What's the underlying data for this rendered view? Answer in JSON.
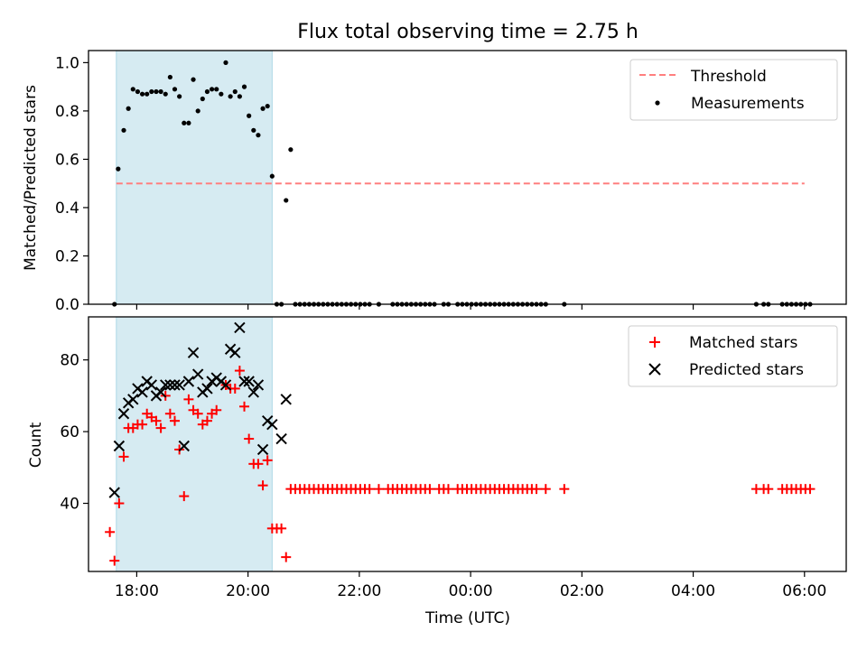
{
  "chart_data": [
    {
      "type": "scatter",
      "title": "Flux total observing time = 2.75 h",
      "xlabel": "",
      "ylabel": "Matched/Predicted stars",
      "ylim": [
        0,
        1.05
      ],
      "xlim": [
        "17:08",
        "06:45"
      ],
      "y_ticks": [
        "0.0",
        "0.2",
        "0.4",
        "0.6",
        "0.8",
        "1.0"
      ],
      "legend_position": "upper right",
      "highlight_span": [
        "17:38",
        "20:26"
      ],
      "threshold": {
        "name": "Threshold",
        "value": 0.5,
        "x_start": "17:38",
        "x_end": "06:00",
        "color": "#ff7f7f"
      },
      "series": [
        {
          "name": "Measurements",
          "color": "#000000",
          "points": [
            [
              "17:36",
              0.0
            ],
            [
              "17:40",
              0.56
            ],
            [
              "17:46",
              0.72
            ],
            [
              "17:51",
              0.81
            ],
            [
              "17:56",
              0.89
            ],
            [
              "18:01",
              0.88
            ],
            [
              "18:06",
              0.87
            ],
            [
              "18:11",
              0.87
            ],
            [
              "18:16",
              0.88
            ],
            [
              "18:21",
              0.88
            ],
            [
              "18:26",
              0.88
            ],
            [
              "18:31",
              0.87
            ],
            [
              "18:36",
              0.94
            ],
            [
              "18:41",
              0.89
            ],
            [
              "18:46",
              0.86
            ],
            [
              "18:51",
              0.75
            ],
            [
              "18:56",
              0.75
            ],
            [
              "19:01",
              0.93
            ],
            [
              "19:06",
              0.8
            ],
            [
              "19:11",
              0.85
            ],
            [
              "19:16",
              0.88
            ],
            [
              "19:21",
              0.89
            ],
            [
              "19:26",
              0.89
            ],
            [
              "19:31",
              0.87
            ],
            [
              "19:36",
              1.0
            ],
            [
              "19:41",
              0.86
            ],
            [
              "19:46",
              0.88
            ],
            [
              "19:51",
              0.86
            ],
            [
              "19:56",
              0.9
            ],
            [
              "20:01",
              0.78
            ],
            [
              "20:06",
              0.72
            ],
            [
              "20:11",
              0.7
            ],
            [
              "20:16",
              0.81
            ],
            [
              "20:21",
              0.82
            ],
            [
              "20:26",
              0.53
            ],
            [
              "20:31",
              0.0
            ],
            [
              "20:36",
              0.0
            ],
            [
              "20:41",
              0.43
            ],
            [
              "20:46",
              0.64
            ],
            [
              "20:51",
              0.0
            ],
            [
              "20:56",
              0.0
            ],
            [
              "21:01",
              0.0
            ],
            [
              "21:06",
              0.0
            ],
            [
              "21:11",
              0.0
            ],
            [
              "21:16",
              0.0
            ],
            [
              "21:21",
              0.0
            ],
            [
              "21:26",
              0.0
            ],
            [
              "21:31",
              0.0
            ],
            [
              "21:36",
              0.0
            ],
            [
              "21:41",
              0.0
            ],
            [
              "21:46",
              0.0
            ],
            [
              "21:51",
              0.0
            ],
            [
              "21:56",
              0.0
            ],
            [
              "22:01",
              0.0
            ],
            [
              "22:06",
              0.0
            ],
            [
              "22:11",
              0.0
            ],
            [
              "22:21",
              0.0
            ],
            [
              "22:36",
              0.0
            ],
            [
              "22:41",
              0.0
            ],
            [
              "22:46",
              0.0
            ],
            [
              "22:51",
              0.0
            ],
            [
              "22:56",
              0.0
            ],
            [
              "23:01",
              0.0
            ],
            [
              "23:06",
              0.0
            ],
            [
              "23:11",
              0.0
            ],
            [
              "23:16",
              0.0
            ],
            [
              "23:21",
              0.0
            ],
            [
              "23:31",
              0.0
            ],
            [
              "23:36",
              0.0
            ],
            [
              "23:46",
              0.0
            ],
            [
              "23:51",
              0.0
            ],
            [
              "23:56",
              0.0
            ],
            [
              "00:01",
              0.0
            ],
            [
              "00:06",
              0.0
            ],
            [
              "00:11",
              0.0
            ],
            [
              "00:16",
              0.0
            ],
            [
              "00:21",
              0.0
            ],
            [
              "00:26",
              0.0
            ],
            [
              "00:31",
              0.0
            ],
            [
              "00:36",
              0.0
            ],
            [
              "00:41",
              0.0
            ],
            [
              "00:46",
              0.0
            ],
            [
              "00:51",
              0.0
            ],
            [
              "00:56",
              0.0
            ],
            [
              "01:01",
              0.0
            ],
            [
              "01:06",
              0.0
            ],
            [
              "01:11",
              0.0
            ],
            [
              "01:16",
              0.0
            ],
            [
              "01:21",
              0.0
            ],
            [
              "01:41",
              0.0
            ],
            [
              "05:08",
              0.0
            ],
            [
              "05:16",
              0.0
            ],
            [
              "05:21",
              0.0
            ],
            [
              "05:36",
              0.0
            ],
            [
              "05:41",
              0.0
            ],
            [
              "05:46",
              0.0
            ],
            [
              "05:51",
              0.0
            ],
            [
              "05:56",
              0.0
            ],
            [
              "06:01",
              0.0
            ],
            [
              "06:06",
              0.0
            ]
          ]
        }
      ]
    },
    {
      "type": "scatter",
      "title": "",
      "xlabel": "Time (UTC)",
      "ylabel": "Count",
      "ylim": [
        21,
        92
      ],
      "xlim": [
        "17:08",
        "06:45"
      ],
      "x_ticks": [
        "18:00",
        "20:00",
        "22:00",
        "00:00",
        "02:00",
        "04:00",
        "06:00"
      ],
      "y_ticks": [
        "40",
        "60",
        "80"
      ],
      "legend_position": "upper right",
      "highlight_span": [
        "17:38",
        "20:26"
      ],
      "series": [
        {
          "name": "Matched stars",
          "marker": "plus",
          "color": "#ff0000",
          "points": [
            [
              "17:31",
              32
            ],
            [
              "17:36",
              24
            ],
            [
              "17:41",
              40
            ],
            [
              "17:46",
              53
            ],
            [
              "17:51",
              61
            ],
            [
              "17:56",
              61
            ],
            [
              "18:01",
              62
            ],
            [
              "18:06",
              62
            ],
            [
              "18:11",
              65
            ],
            [
              "18:16",
              64
            ],
            [
              "18:21",
              63
            ],
            [
              "18:26",
              61
            ],
            [
              "18:31",
              70
            ],
            [
              "18:36",
              65
            ],
            [
              "18:41",
              63
            ],
            [
              "18:46",
              55
            ],
            [
              "18:51",
              42
            ],
            [
              "18:56",
              69
            ],
            [
              "19:01",
              66
            ],
            [
              "19:06",
              65
            ],
            [
              "19:11",
              62
            ],
            [
              "19:16",
              63
            ],
            [
              "19:21",
              65
            ],
            [
              "19:26",
              66
            ],
            [
              "19:36",
              73
            ],
            [
              "19:41",
              72
            ],
            [
              "19:46",
              72
            ],
            [
              "19:51",
              77
            ],
            [
              "19:56",
              67
            ],
            [
              "20:01",
              58
            ],
            [
              "20:06",
              51
            ],
            [
              "20:11",
              51
            ],
            [
              "20:16",
              45
            ],
            [
              "20:21",
              52
            ],
            [
              "20:26",
              33
            ],
            [
              "20:31",
              33
            ],
            [
              "20:36",
              33
            ],
            [
              "20:41",
              25
            ],
            [
              "20:46",
              44
            ],
            [
              "20:51",
              44
            ],
            [
              "20:56",
              44
            ],
            [
              "21:01",
              44
            ],
            [
              "21:06",
              44
            ],
            [
              "21:11",
              44
            ],
            [
              "21:16",
              44
            ],
            [
              "21:21",
              44
            ],
            [
              "21:26",
              44
            ],
            [
              "21:31",
              44
            ],
            [
              "21:36",
              44
            ],
            [
              "21:41",
              44
            ],
            [
              "21:46",
              44
            ],
            [
              "21:51",
              44
            ],
            [
              "21:56",
              44
            ],
            [
              "22:01",
              44
            ],
            [
              "22:06",
              44
            ],
            [
              "22:11",
              44
            ],
            [
              "22:21",
              44
            ],
            [
              "22:31",
              44
            ],
            [
              "22:36",
              44
            ],
            [
              "22:41",
              44
            ],
            [
              "22:46",
              44
            ],
            [
              "22:51",
              44
            ],
            [
              "22:56",
              44
            ],
            [
              "23:01",
              44
            ],
            [
              "23:06",
              44
            ],
            [
              "23:11",
              44
            ],
            [
              "23:16",
              44
            ],
            [
              "23:26",
              44
            ],
            [
              "23:31",
              44
            ],
            [
              "23:36",
              44
            ],
            [
              "23:46",
              44
            ],
            [
              "23:51",
              44
            ],
            [
              "23:56",
              44
            ],
            [
              "00:01",
              44
            ],
            [
              "00:06",
              44
            ],
            [
              "00:11",
              44
            ],
            [
              "00:16",
              44
            ],
            [
              "00:21",
              44
            ],
            [
              "00:26",
              44
            ],
            [
              "00:31",
              44
            ],
            [
              "00:36",
              44
            ],
            [
              "00:41",
              44
            ],
            [
              "00:46",
              44
            ],
            [
              "00:51",
              44
            ],
            [
              "00:56",
              44
            ],
            [
              "01:01",
              44
            ],
            [
              "01:06",
              44
            ],
            [
              "01:11",
              44
            ],
            [
              "01:21",
              44
            ],
            [
              "01:41",
              44
            ],
            [
              "05:08",
              44
            ],
            [
              "05:16",
              44
            ],
            [
              "05:21",
              44
            ],
            [
              "05:36",
              44
            ],
            [
              "05:41",
              44
            ],
            [
              "05:46",
              44
            ],
            [
              "05:51",
              44
            ],
            [
              "05:56",
              44
            ],
            [
              "06:01",
              44
            ],
            [
              "06:06",
              44
            ]
          ]
        },
        {
          "name": "Predicted stars",
          "marker": "x",
          "color": "#000000",
          "points": [
            [
              "17:36",
              43
            ],
            [
              "17:41",
              56
            ],
            [
              "17:46",
              65
            ],
            [
              "17:51",
              68
            ],
            [
              "17:56",
              69
            ],
            [
              "18:01",
              72
            ],
            [
              "18:06",
              71
            ],
            [
              "18:11",
              74
            ],
            [
              "18:16",
              73
            ],
            [
              "18:21",
              70
            ],
            [
              "18:26",
              71
            ],
            [
              "18:31",
              73
            ],
            [
              "18:36",
              73
            ],
            [
              "18:41",
              73
            ],
            [
              "18:46",
              73
            ],
            [
              "18:51",
              56
            ],
            [
              "18:56",
              74
            ],
            [
              "19:01",
              82
            ],
            [
              "19:06",
              76
            ],
            [
              "19:11",
              71
            ],
            [
              "19:16",
              72
            ],
            [
              "19:21",
              74
            ],
            [
              "19:26",
              75
            ],
            [
              "19:31",
              74
            ],
            [
              "19:36",
              73
            ],
            [
              "19:41",
              83
            ],
            [
              "19:46",
              82
            ],
            [
              "19:51",
              89
            ],
            [
              "19:56",
              74
            ],
            [
              "20:01",
              74
            ],
            [
              "20:06",
              71
            ],
            [
              "20:11",
              73
            ],
            [
              "20:16",
              55
            ],
            [
              "20:21",
              63
            ],
            [
              "20:26",
              62
            ],
            [
              "20:36",
              58
            ],
            [
              "20:41",
              69
            ]
          ]
        }
      ]
    }
  ]
}
